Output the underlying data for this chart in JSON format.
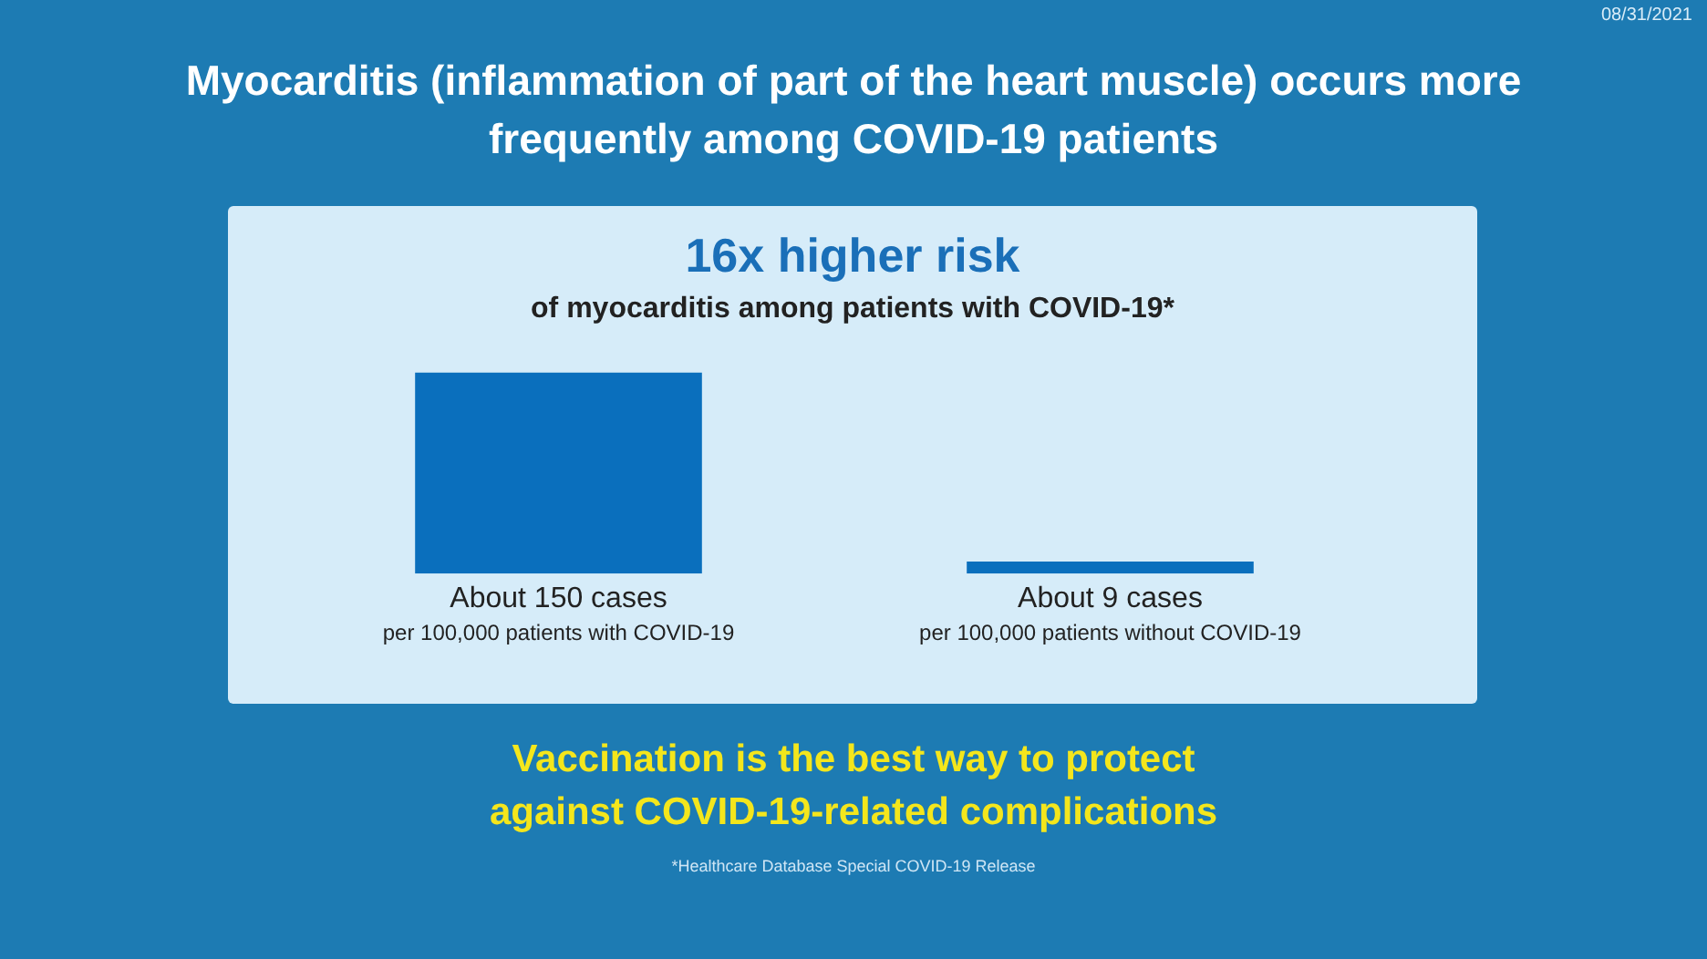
{
  "chart_data": {
    "type": "bar",
    "title": "Myocarditis (inflammation of part of the heart muscle) occurs more frequently among COVID-19 patients",
    "subtitle": "16x higher risk",
    "categories": [
      "per 100,000 patients with COVID-19",
      "per 100,000 patients without COVID-19"
    ],
    "values": [
      150,
      9
    ],
    "color": "#0a6fbd",
    "value_labels": [
      "About 150 cases",
      "About 9 cases"
    ],
    "grid": false,
    "legend": false,
    "tick_labels": "x",
    "annotations": [
      "of myocarditis among patients with COVID-19*",
      "08/31/2021",
      "Vaccination is the best way to protect against COVID-19-related complications",
      "*Healthcare Database Special COVID-19 Release"
    ]
  }
}
